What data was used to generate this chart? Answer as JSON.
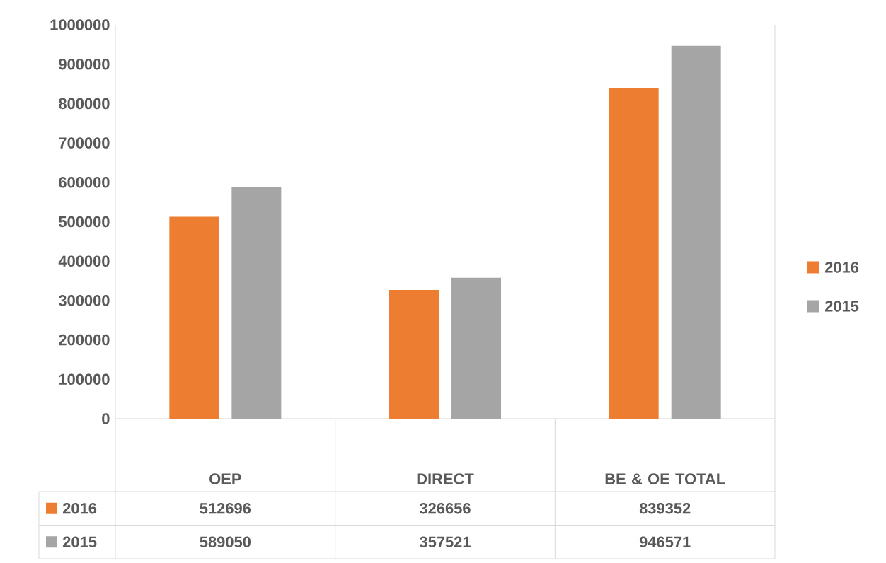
{
  "chart_data": {
    "type": "bar",
    "categories": [
      "OEP",
      "DIRECT",
      "BE & OE TOTAL"
    ],
    "series": [
      {
        "name": "2016",
        "color": "#ed7d31",
        "values": [
          512696,
          326656,
          839352
        ]
      },
      {
        "name": "2015",
        "color": "#a5a5a5",
        "values": [
          589050,
          357521,
          946571
        ]
      }
    ],
    "ylim": [
      0,
      1000000
    ],
    "yticks": [
      0,
      100000,
      200000,
      300000,
      400000,
      500000,
      600000,
      700000,
      800000,
      900000,
      1000000
    ],
    "legend": "right",
    "data_labels": true
  }
}
